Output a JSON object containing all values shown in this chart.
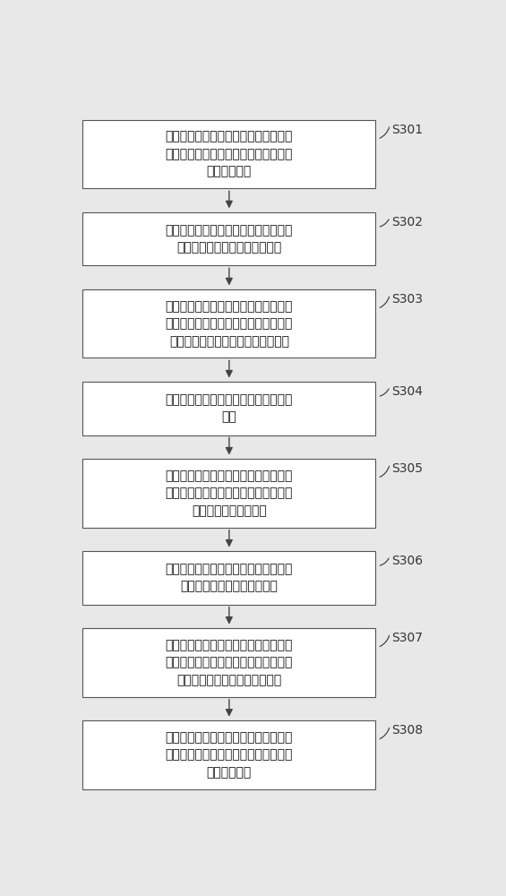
{
  "bg_color": "#e8e8e8",
  "box_color": "#ffffff",
  "box_edge_color": "#555555",
  "arrow_color": "#444444",
  "text_color": "#111111",
  "label_color": "#333333",
  "steps": [
    {
      "id": "S301",
      "label": "S301",
      "text": "按照雷达的分辨力和零旁瓣带要求，设\n定波形参数，并根据所述波形参数构造\n多相序列矩阵",
      "lines": 3
    },
    {
      "id": "S302",
      "label": "S302",
      "text": "利用所述多相序列矩阵中各行依次串接\n形成各发射波形的多相编码序列",
      "lines": 2
    },
    {
      "id": "S303",
      "label": "S303",
      "text": "利用所述多相编码序列，分别对基脉冲\n进行编码调制以产生所述多输出多输入\n雷达发射阵列各发射阵元的发射信号",
      "lines": 3
    },
    {
      "id": "S304",
      "label": "S304",
      "text": "通过所述发射阵元发射相应的所述发射\n信号",
      "lines": 2
    },
    {
      "id": "S305",
      "label": "S305",
      "text": "通过所述多输出多输入雷达的接收阵列\n的多个接收阵元接收所述发射信号经目\n标物反射后的回波信号",
      "lines": 3
    },
    {
      "id": "S306",
      "label": "S306",
      "text": "对所述回波信号进行基带转换和模数变\n换以得到各接收阵元回波序列",
      "lines": 2
    },
    {
      "id": "S307",
      "label": "S307",
      "text": "以所述发射信号为参考信号，对所述各\n接收阵元回波序列从频域进行匹配滤波\n处理得到脉冲压缩输出回波序列",
      "lines": 3
    },
    {
      "id": "S308",
      "label": "S308",
      "text": "利用设定距离门对所述脉压输出回波序\n列按一定时间间隔进行截取，以得到零\n旁瓣回波序列",
      "lines": 3
    }
  ],
  "fig_width": 5.65,
  "fig_height": 10.0,
  "dpi": 100
}
